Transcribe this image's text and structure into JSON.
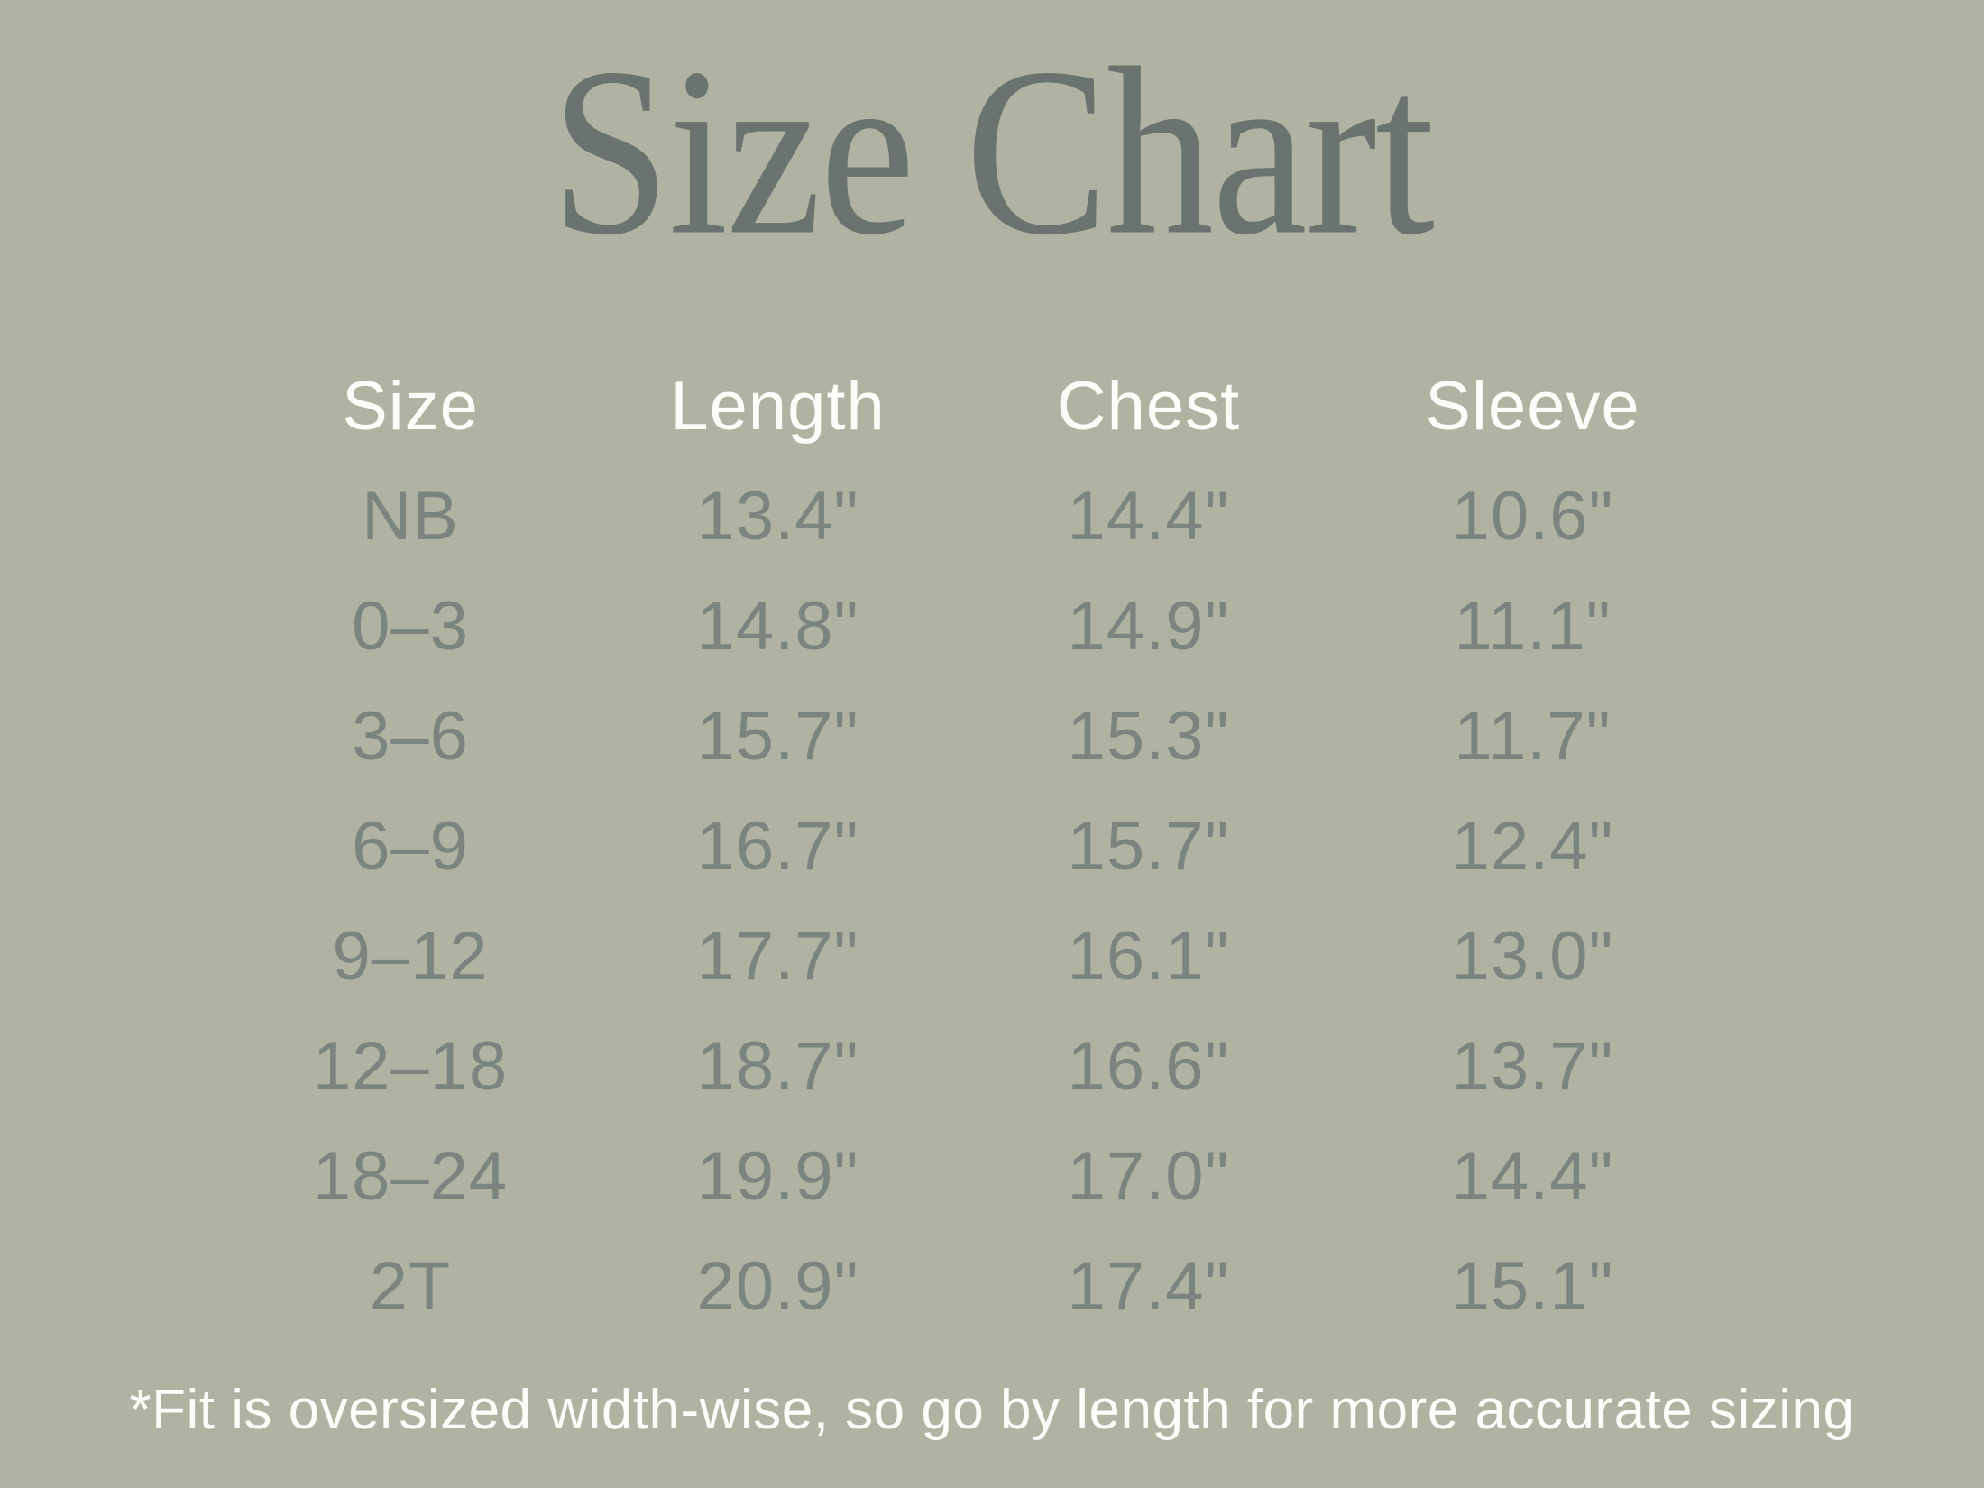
{
  "page": {
    "title": "Size Chart",
    "footnote": "*Fit is oversized width-wise, so go by length for more accurate sizing"
  },
  "colors": {
    "background": "#b1b3a2",
    "title_text": "#6a736f",
    "header_text": "#fcfcf8",
    "data_text": "#7c847f",
    "footnote_text": "#fcfcf8"
  },
  "chart_data": {
    "type": "table",
    "title": "Size Chart",
    "columns": [
      "Size",
      "Length",
      "Chest",
      "Sleeve"
    ],
    "rows": [
      [
        "NB",
        "13.4\"",
        "14.4\"",
        "10.6\""
      ],
      [
        "0–3",
        "14.8\"",
        "14.9\"",
        "11.1\""
      ],
      [
        "3–6",
        "15.7\"",
        "15.3\"",
        "11.7\""
      ],
      [
        "6–9",
        "16.7\"",
        "15.7\"",
        "12.4\""
      ],
      [
        "9–12",
        "17.7\"",
        "16.1\"",
        "13.0\""
      ],
      [
        "12–18",
        "18.7\"",
        "16.6\"",
        "13.7\""
      ],
      [
        "18–24",
        "19.9\"",
        "17.0\"",
        "14.4\""
      ],
      [
        "2T",
        "20.9\"",
        "17.4\"",
        "15.1\""
      ]
    ],
    "units": "inches",
    "footnote": "*Fit is oversized width-wise, so go by length for more accurate sizing",
    "layout": {
      "legend": "none",
      "grid": "off"
    }
  }
}
